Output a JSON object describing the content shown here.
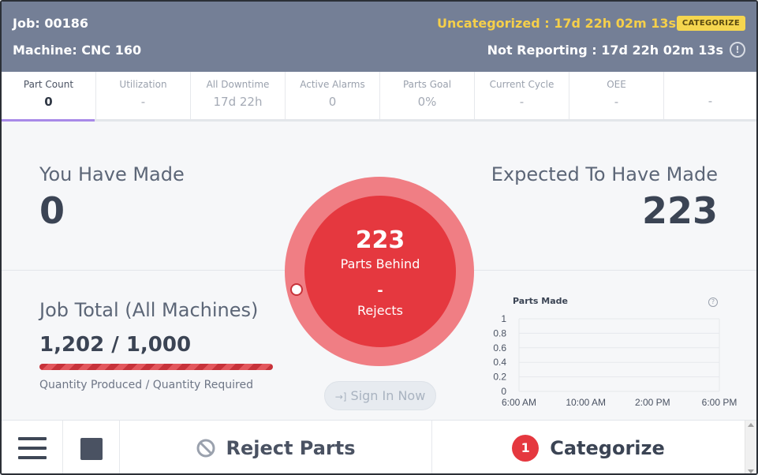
{
  "header": {
    "job": "Job: 00186",
    "machine": "Machine: CNC 160",
    "uncategorized": "Uncategorized : 17d 22h 02m 13s",
    "categorize_badge": "CATEGORIZE",
    "not_reporting": "Not Reporting : 17d 22h 02m 13s",
    "info_icon": "info-icon"
  },
  "tabs": [
    {
      "label": "Part Count",
      "value": "0"
    },
    {
      "label": "Utilization",
      "value": "-"
    },
    {
      "label": "All Downtime",
      "value": "17d 22h"
    },
    {
      "label": "Active Alarms",
      "value": "0"
    },
    {
      "label": "Parts Goal",
      "value": "0%"
    },
    {
      "label": "Current Cycle",
      "value": "-"
    },
    {
      "label": "OEE",
      "value": "-"
    },
    {
      "label": "",
      "value": "-"
    }
  ],
  "main": {
    "made_label": "You Have Made",
    "made_value": "0",
    "expected_label": "Expected To Have Made",
    "expected_value": "223",
    "job_total_label": "Job Total (All Machines)",
    "job_total_value": "1,202 / 1,000",
    "job_total_progress": 1.0,
    "job_total_sub": "Quantity Produced / Quantity Required",
    "circle": {
      "number": "223",
      "behind_label": "Parts Behind",
      "rejects_value": "-",
      "rejects_label": "Rejects"
    },
    "sign_in": "Sign In Now",
    "sign_in_icon": "sign-in-icon"
  },
  "chart_data": {
    "type": "line",
    "title": "Parts Made",
    "x": [
      "6:00 AM",
      "10:00 AM",
      "2:00 PM",
      "6:00 PM"
    ],
    "yticks": [
      "1",
      "0.8",
      "0.6",
      "0.4",
      "0.2",
      "0"
    ],
    "ylim": [
      0,
      1
    ],
    "series": [],
    "grid": true
  },
  "bottom": {
    "menu_icon": "hamburger-menu-icon",
    "stop_icon": "stop-icon",
    "reject_label": "Reject Parts",
    "reject_icon": "prohibited-icon",
    "categorize_count": "1",
    "categorize_label": "Categorize"
  },
  "colors": {
    "header_bg": "#747f96",
    "accent_yellow": "#f5cf4a",
    "alert_red": "#e5383f",
    "ring_red": "#f07e84",
    "tab_active": "#a889e8"
  }
}
